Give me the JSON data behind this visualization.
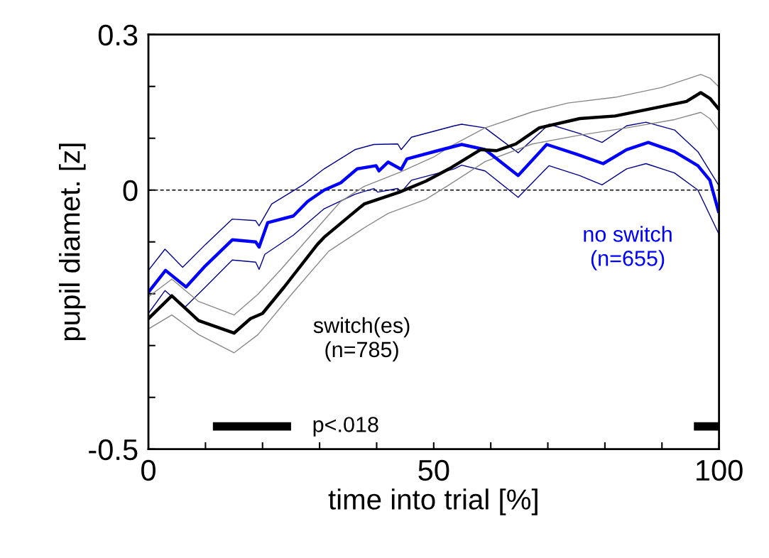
{
  "chart_data": {
    "type": "line",
    "xlabel": "time into trial [%]",
    "ylabel": "pupil diamet. [z]",
    "xlim": [
      0,
      100
    ],
    "ylim": [
      -0.5,
      0.3
    ],
    "xticks": [
      0,
      {
        "value": 10,
        "label": null
      },
      {
        "value": 20,
        "label": null
      },
      {
        "value": 30,
        "label": null
      },
      {
        "value": 40,
        "label": null
      },
      50,
      {
        "value": 60,
        "label": null
      },
      {
        "value": 70,
        "label": null
      },
      {
        "value": 80,
        "label": null
      },
      {
        "value": 90,
        "label": null
      },
      100
    ],
    "yticks": [
      -0.5,
      {
        "value": -0.4,
        "label": null
      },
      {
        "value": -0.3,
        "label": null
      },
      {
        "value": -0.2,
        "label": null
      },
      {
        "value": -0.1,
        "label": null
      },
      0,
      {
        "value": 0.1,
        "label": null
      },
      {
        "value": 0.2,
        "label": null
      },
      0.3
    ],
    "grid": false,
    "legend": false,
    "marker": "none",
    "line_style": "solid",
    "ref_lines": [
      {
        "axis": "y",
        "value": 0,
        "color": "#000000",
        "line_style": "dashed"
      }
    ],
    "annotations": [
      "p<.018"
    ],
    "series": [
      {
        "color": "#00008b",
        "x": [
          0,
          2.9,
          6,
          10,
          14.7,
          18.8,
          19.4,
          21.6,
          27.1,
          30.8,
          36.2,
          39.5,
          43.7,
          44.3,
          46.1,
          53.6,
          54.9,
          59,
          64.8,
          70.2,
          75.6,
          79.5,
          83.8,
          87.2,
          92.2,
          96.3,
          99.9
        ],
        "values": [
          -0.155,
          -0.114,
          -0.149,
          -0.105,
          -0.056,
          -0.059,
          -0.069,
          -0.027,
          0.01,
          0.041,
          0.078,
          0.088,
          0.089,
          0.078,
          0.102,
          0.124,
          0.127,
          0.12,
          0.072,
          0.127,
          0.109,
          0.092,
          0.124,
          0.131,
          0.116,
          0.074,
          0.01
        ]
      },
      {
        "color": "#00008b",
        "x": [
          0,
          2.9,
          6.3,
          10,
          14.7,
          18.8,
          19.4,
          20.4,
          25.4,
          30.8,
          36.2,
          39.5,
          40.2,
          43.7,
          44.3,
          46.1,
          53.6,
          54.9,
          59,
          64.8,
          70.2,
          75.6,
          79.5,
          83.8,
          87.2,
          92.2,
          96.3,
          99.9
        ],
        "values": [
          -0.238,
          -0.194,
          -0.227,
          -0.187,
          -0.135,
          -0.139,
          -0.153,
          -0.124,
          -0.087,
          -0.036,
          -0.008,
          0.003,
          -0.004,
          0.003,
          -0.004,
          0.019,
          0.041,
          0.048,
          0.037,
          -0.014,
          0.047,
          0.028,
          0.01,
          0.041,
          0.051,
          0.033,
          0,
          -0.083
        ]
      },
      {
        "color": "#888888",
        "x": [
          0,
          4.1,
          8.8,
          15,
          19.2,
          23.4,
          29.6,
          33.7,
          37.8,
          44,
          50.2,
          52.7,
          59,
          67.3,
          73.5,
          81.8,
          90,
          96.8,
          98.4,
          99.9
        ],
        "values": [
          -0.206,
          -0.172,
          -0.215,
          -0.241,
          -0.201,
          -0.151,
          -0.073,
          -0.022,
          0.007,
          0.034,
          0.065,
          0.083,
          0.12,
          0.151,
          0.168,
          0.179,
          0.198,
          0.223,
          0.216,
          0.2
        ]
      },
      {
        "color": "#888888",
        "x": [
          0,
          4.1,
          8.8,
          15,
          19.2,
          25.4,
          31.6,
          37.8,
          42,
          48.6,
          52.7,
          59,
          67.3,
          75.6,
          83.8,
          92.2,
          96.8,
          98.4,
          99.9
        ],
        "values": [
          -0.268,
          -0.241,
          -0.279,
          -0.314,
          -0.279,
          -0.197,
          -0.118,
          -0.073,
          -0.045,
          -0.018,
          0.01,
          0.055,
          0.089,
          0.106,
          0.12,
          0.136,
          0.15,
          0.138,
          0.116
        ]
      },
      {
        "name": "no switch\n(n=655)",
        "color": "#0000ff",
        "x": [
          0,
          3,
          6.6,
          10,
          14.7,
          18.8,
          19.4,
          20.9,
          25.4,
          27.9,
          30.8,
          33.7,
          36.6,
          39.9,
          40.4,
          42,
          44.3,
          45.3,
          50.7,
          54.9,
          59,
          64.8,
          69.8,
          75.1,
          79.7,
          83.8,
          87.6,
          92.2,
          96.3,
          98.4,
          99.9
        ],
        "values": [
          -0.197,
          -0.155,
          -0.187,
          -0.146,
          -0.096,
          -0.1,
          -0.11,
          -0.063,
          -0.05,
          -0.022,
          0,
          0.014,
          0.041,
          0.047,
          0.037,
          0.054,
          0.04,
          0.06,
          0.076,
          0.088,
          0.078,
          0.028,
          0.088,
          0.069,
          0.051,
          0.078,
          0.092,
          0.074,
          0.047,
          0.019,
          -0.041
        ]
      },
      {
        "name": "switch(es)\n(n=785)",
        "color": "#000000",
        "x": [
          0,
          4.1,
          8.8,
          15,
          17.9,
          20,
          23.8,
          29.6,
          30.8,
          35.8,
          37.8,
          44,
          48.6,
          52.7,
          58.2,
          61,
          64.4,
          68.5,
          75.6,
          81.8,
          88.1,
          94.3,
          96.8,
          98.4,
          99.9
        ],
        "values": [
          -0.248,
          -0.204,
          -0.252,
          -0.276,
          -0.248,
          -0.238,
          -0.187,
          -0.105,
          -0.091,
          -0.045,
          -0.027,
          -0.004,
          0.017,
          0.041,
          0.078,
          0.076,
          0.089,
          0.12,
          0.138,
          0.143,
          0.157,
          0.171,
          0.188,
          0.177,
          0.157
        ]
      },
      {
        "color": "#000000",
        "x": [
          11.3,
          25,
          null,
          95.6,
          100
        ],
        "values": [
          -0.456,
          -0.456,
          null,
          -0.456,
          -0.456
        ]
      }
    ]
  }
}
